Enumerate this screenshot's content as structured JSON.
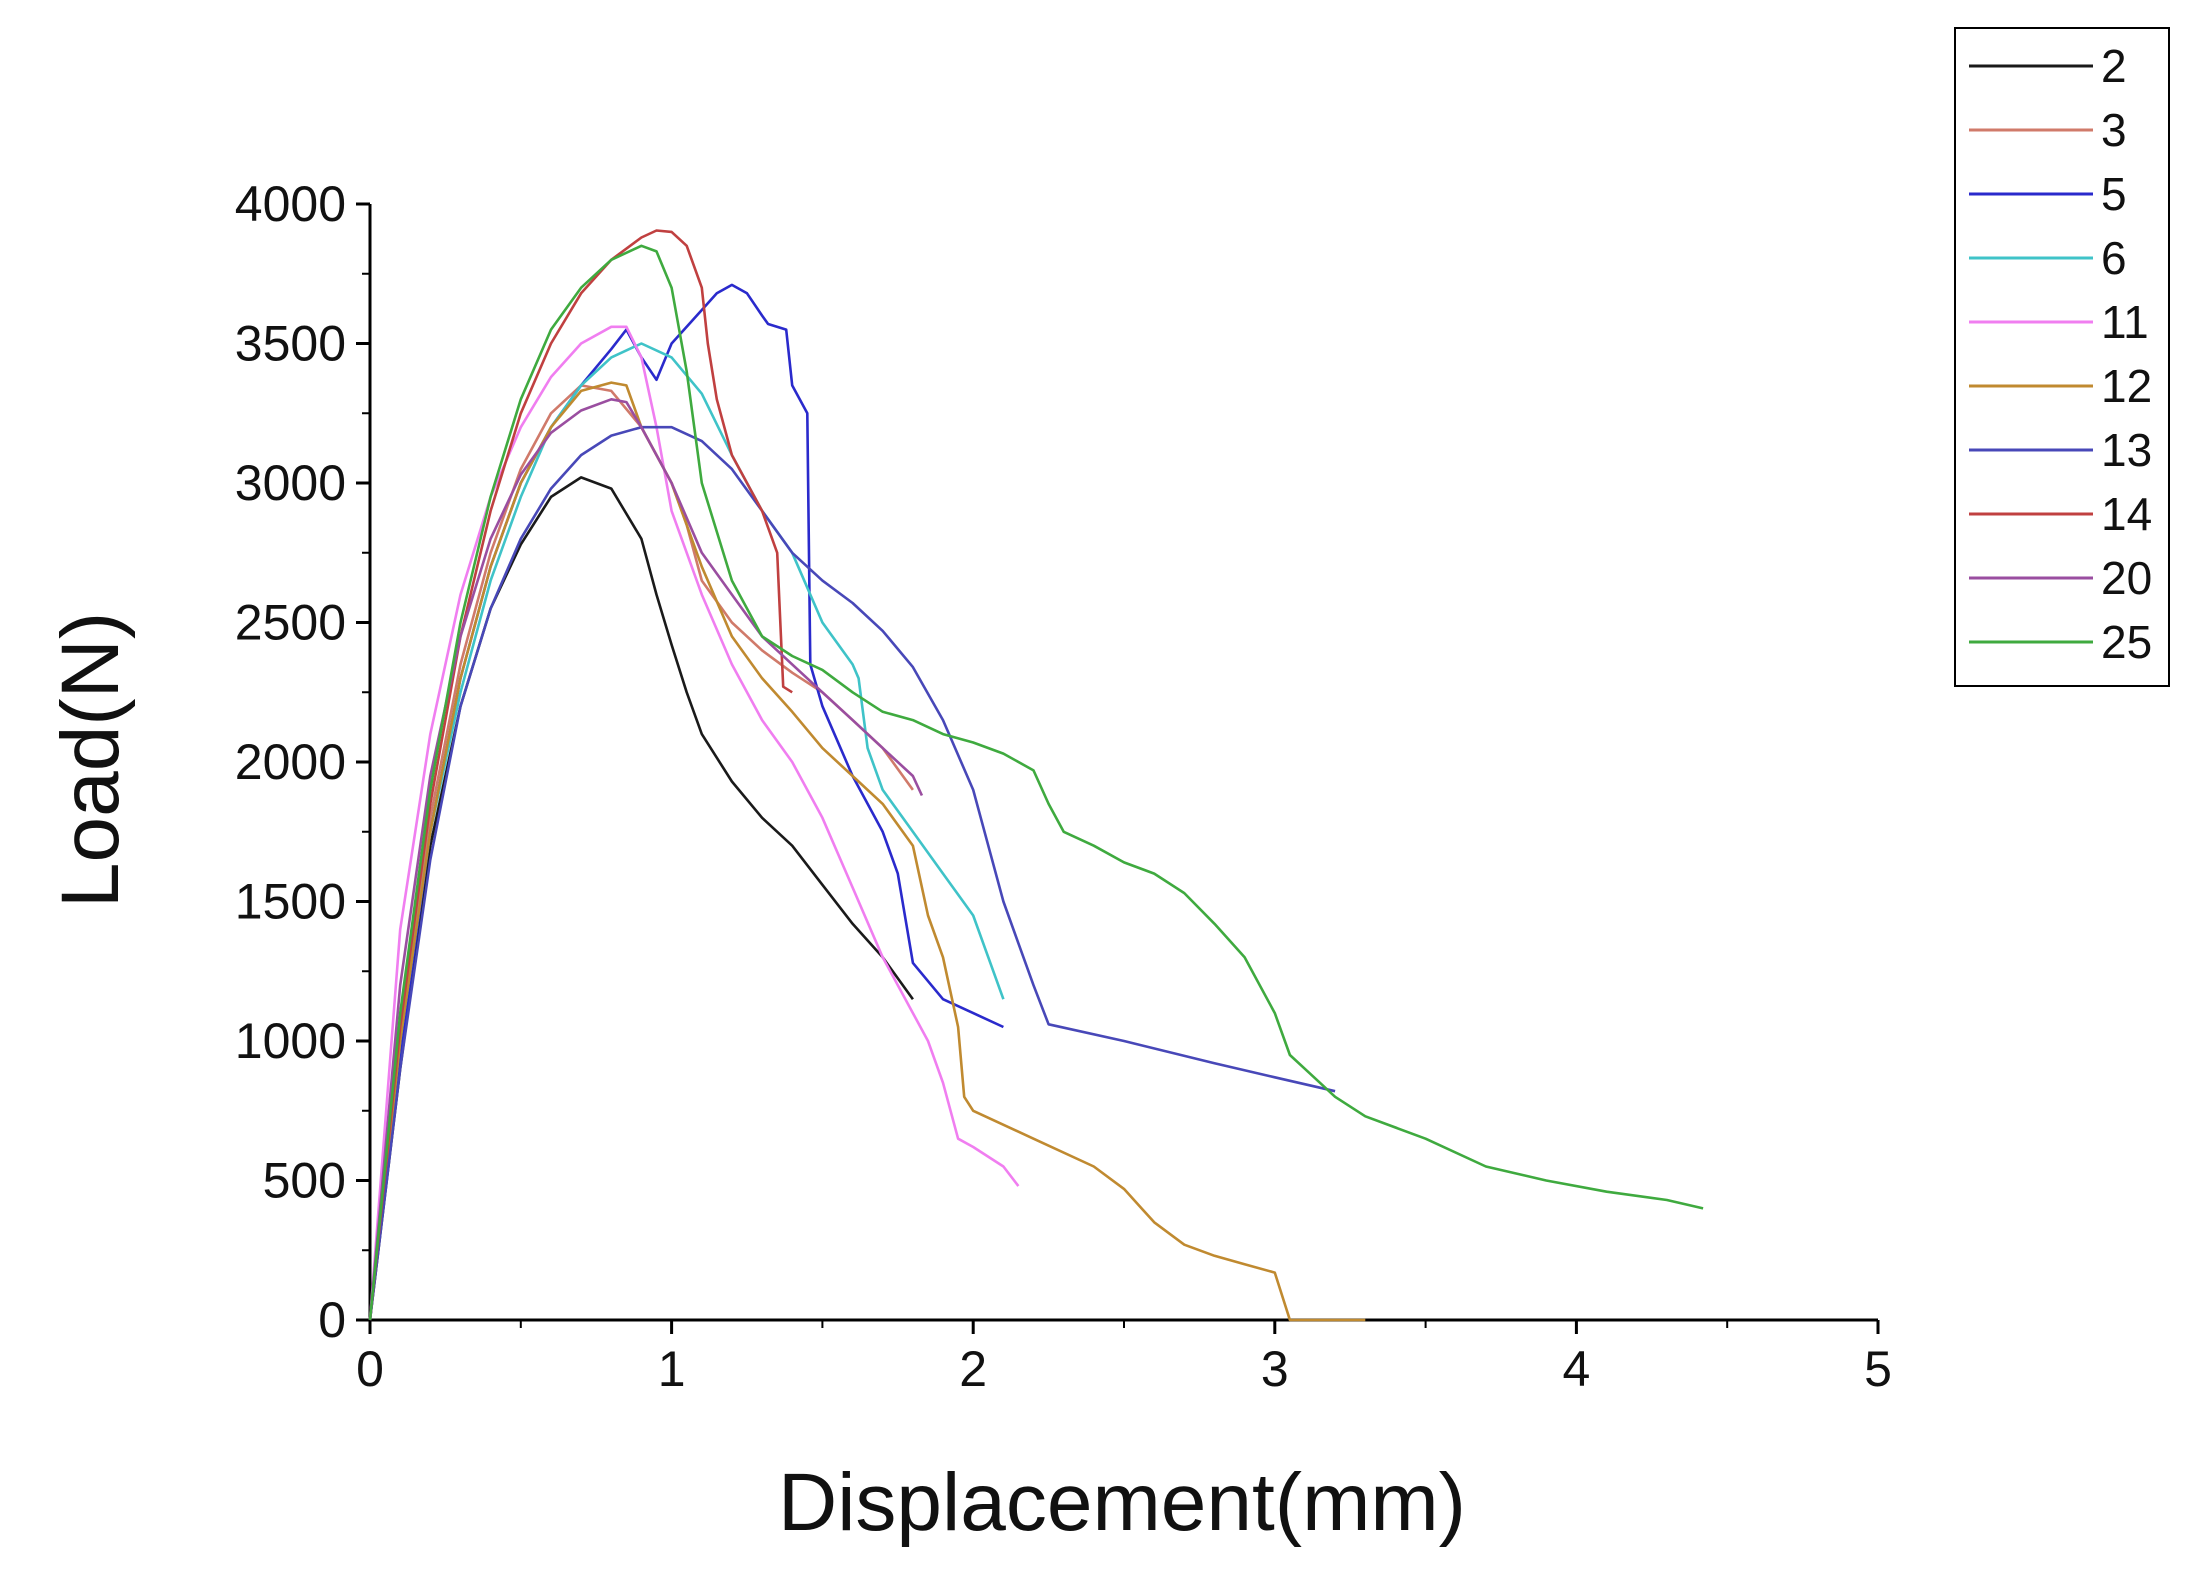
{
  "chart_data": {
    "type": "line",
    "xlabel": "Displacement(mm)",
    "ylabel": "Load(N)",
    "xlim": [
      0,
      5
    ],
    "ylim": [
      0,
      4000
    ],
    "x_ticks": [
      "0",
      "1",
      "2",
      "3",
      "4",
      "5"
    ],
    "y_ticks": [
      "0",
      "500",
      "1000",
      "1500",
      "2000",
      "2500",
      "3000",
      "3500",
      "4000"
    ],
    "grid": false,
    "legend_position": "top-right, outside plot area",
    "series": [
      {
        "name": "2",
        "color": "#1a1a1a",
        "points": [
          [
            0,
            0
          ],
          [
            0.1,
            900
          ],
          [
            0.2,
            1700
          ],
          [
            0.3,
            2200
          ],
          [
            0.4,
            2550
          ],
          [
            0.5,
            2780
          ],
          [
            0.6,
            2950
          ],
          [
            0.7,
            3020
          ],
          [
            0.8,
            2980
          ],
          [
            0.9,
            2800
          ],
          [
            0.95,
            2600
          ],
          [
            1.0,
            2420
          ],
          [
            1.05,
            2250
          ],
          [
            1.1,
            2100
          ],
          [
            1.2,
            1930
          ],
          [
            1.3,
            1800
          ],
          [
            1.4,
            1700
          ],
          [
            1.5,
            1560
          ],
          [
            1.6,
            1420
          ],
          [
            1.7,
            1300
          ],
          [
            1.8,
            1150
          ]
        ]
      },
      {
        "name": "3",
        "color": "#d07a6a",
        "points": [
          [
            0,
            0
          ],
          [
            0.1,
            1050
          ],
          [
            0.2,
            1800
          ],
          [
            0.3,
            2350
          ],
          [
            0.4,
            2750
          ],
          [
            0.5,
            3050
          ],
          [
            0.6,
            3250
          ],
          [
            0.7,
            3350
          ],
          [
            0.8,
            3330
          ],
          [
            0.9,
            3200
          ],
          [
            1.0,
            3000
          ],
          [
            1.05,
            2850
          ],
          [
            1.1,
            2650
          ],
          [
            1.2,
            2500
          ],
          [
            1.3,
            2400
          ],
          [
            1.4,
            2320
          ],
          [
            1.5,
            2250
          ],
          [
            1.6,
            2150
          ],
          [
            1.7,
            2050
          ],
          [
            1.8,
            1900
          ]
        ]
      },
      {
        "name": "5",
        "color": "#2a2acc",
        "points": [
          [
            0,
            0
          ],
          [
            0.1,
            950
          ],
          [
            0.2,
            1750
          ],
          [
            0.3,
            2300
          ],
          [
            0.4,
            2700
          ],
          [
            0.5,
            3000
          ],
          [
            0.6,
            3200
          ],
          [
            0.7,
            3350
          ],
          [
            0.8,
            3480
          ],
          [
            0.85,
            3550
          ],
          [
            0.9,
            3450
          ],
          [
            0.95,
            3370
          ],
          [
            1.0,
            3500
          ],
          [
            1.1,
            3620
          ],
          [
            1.15,
            3680
          ],
          [
            1.2,
            3710
          ],
          [
            1.25,
            3680
          ],
          [
            1.3,
            3600
          ],
          [
            1.32,
            3570
          ],
          [
            1.38,
            3550
          ],
          [
            1.4,
            3350
          ],
          [
            1.45,
            3250
          ],
          [
            1.46,
            2350
          ],
          [
            1.5,
            2200
          ],
          [
            1.6,
            1950
          ],
          [
            1.7,
            1750
          ],
          [
            1.75,
            1600
          ],
          [
            1.8,
            1280
          ],
          [
            1.9,
            1150
          ],
          [
            2.0,
            1100
          ],
          [
            2.1,
            1050
          ]
        ]
      },
      {
        "name": "6",
        "color": "#3fc3c8",
        "points": [
          [
            0,
            0
          ],
          [
            0.1,
            1000
          ],
          [
            0.2,
            1750
          ],
          [
            0.3,
            2250
          ],
          [
            0.4,
            2650
          ],
          [
            0.5,
            2950
          ],
          [
            0.6,
            3200
          ],
          [
            0.7,
            3350
          ],
          [
            0.8,
            3450
          ],
          [
            0.9,
            3500
          ],
          [
            1.0,
            3450
          ],
          [
            1.1,
            3320
          ],
          [
            1.2,
            3100
          ],
          [
            1.3,
            2900
          ],
          [
            1.4,
            2750
          ],
          [
            1.5,
            2500
          ],
          [
            1.6,
            2350
          ],
          [
            1.62,
            2300
          ],
          [
            1.65,
            2050
          ],
          [
            1.7,
            1900
          ],
          [
            1.8,
            1750
          ],
          [
            1.9,
            1600
          ],
          [
            2.0,
            1450
          ],
          [
            2.05,
            1300
          ],
          [
            2.1,
            1150
          ]
        ]
      },
      {
        "name": "11",
        "color": "#f07ef0",
        "points": [
          [
            0,
            0
          ],
          [
            0.1,
            1400
          ],
          [
            0.2,
            2100
          ],
          [
            0.3,
            2600
          ],
          [
            0.4,
            2950
          ],
          [
            0.5,
            3200
          ],
          [
            0.6,
            3380
          ],
          [
            0.7,
            3500
          ],
          [
            0.8,
            3560
          ],
          [
            0.85,
            3560
          ],
          [
            0.9,
            3450
          ],
          [
            0.95,
            3200
          ],
          [
            1.0,
            2900
          ],
          [
            1.1,
            2600
          ],
          [
            1.2,
            2350
          ],
          [
            1.3,
            2150
          ],
          [
            1.4,
            2000
          ],
          [
            1.5,
            1800
          ],
          [
            1.6,
            1550
          ],
          [
            1.7,
            1300
          ],
          [
            1.8,
            1100
          ],
          [
            1.85,
            1000
          ],
          [
            1.9,
            850
          ],
          [
            1.95,
            650
          ],
          [
            2.0,
            620
          ],
          [
            2.1,
            550
          ],
          [
            2.15,
            480
          ]
        ]
      },
      {
        "name": "12",
        "color": "#c08a30",
        "points": [
          [
            0,
            0
          ],
          [
            0.1,
            1000
          ],
          [
            0.2,
            1750
          ],
          [
            0.3,
            2300
          ],
          [
            0.4,
            2700
          ],
          [
            0.5,
            3000
          ],
          [
            0.6,
            3200
          ],
          [
            0.7,
            3330
          ],
          [
            0.8,
            3360
          ],
          [
            0.85,
            3350
          ],
          [
            0.9,
            3200
          ],
          [
            1.0,
            3000
          ],
          [
            1.1,
            2700
          ],
          [
            1.2,
            2450
          ],
          [
            1.3,
            2300
          ],
          [
            1.4,
            2180
          ],
          [
            1.5,
            2050
          ],
          [
            1.6,
            1950
          ],
          [
            1.7,
            1850
          ],
          [
            1.8,
            1700
          ],
          [
            1.85,
            1450
          ],
          [
            1.9,
            1300
          ],
          [
            1.95,
            1050
          ],
          [
            1.97,
            800
          ],
          [
            2.0,
            750
          ],
          [
            2.2,
            650
          ],
          [
            2.4,
            550
          ],
          [
            2.5,
            470
          ],
          [
            2.6,
            350
          ],
          [
            2.7,
            270
          ],
          [
            2.8,
            230
          ],
          [
            2.9,
            200
          ],
          [
            3.0,
            170
          ],
          [
            3.05,
            0
          ],
          [
            3.3,
            0
          ]
        ]
      },
      {
        "name": "13",
        "color": "#4848b8",
        "points": [
          [
            0,
            0
          ],
          [
            0.1,
            900
          ],
          [
            0.2,
            1650
          ],
          [
            0.3,
            2200
          ],
          [
            0.4,
            2550
          ],
          [
            0.5,
            2800
          ],
          [
            0.6,
            2980
          ],
          [
            0.7,
            3100
          ],
          [
            0.8,
            3170
          ],
          [
            0.9,
            3200
          ],
          [
            1.0,
            3200
          ],
          [
            1.1,
            3150
          ],
          [
            1.2,
            3050
          ],
          [
            1.3,
            2900
          ],
          [
            1.4,
            2750
          ],
          [
            1.5,
            2650
          ],
          [
            1.6,
            2570
          ],
          [
            1.7,
            2470
          ],
          [
            1.8,
            2340
          ],
          [
            1.9,
            2150
          ],
          [
            2.0,
            1900
          ],
          [
            2.05,
            1700
          ],
          [
            2.1,
            1500
          ],
          [
            2.15,
            1350
          ],
          [
            2.2,
            1200
          ],
          [
            2.25,
            1060
          ],
          [
            2.5,
            1000
          ],
          [
            2.8,
            920
          ],
          [
            3.0,
            870
          ],
          [
            3.2,
            820
          ]
        ]
      },
      {
        "name": "14",
        "color": "#c04040",
        "points": [
          [
            0,
            0
          ],
          [
            0.1,
            1050
          ],
          [
            0.2,
            1850
          ],
          [
            0.3,
            2450
          ],
          [
            0.4,
            2900
          ],
          [
            0.5,
            3250
          ],
          [
            0.6,
            3500
          ],
          [
            0.7,
            3680
          ],
          [
            0.8,
            3800
          ],
          [
            0.9,
            3880
          ],
          [
            0.95,
            3905
          ],
          [
            1.0,
            3900
          ],
          [
            1.05,
            3850
          ],
          [
            1.1,
            3700
          ],
          [
            1.12,
            3500
          ],
          [
            1.15,
            3300
          ],
          [
            1.2,
            3100
          ],
          [
            1.3,
            2900
          ],
          [
            1.35,
            2750
          ],
          [
            1.37,
            2270
          ],
          [
            1.4,
            2250
          ]
        ]
      },
      {
        "name": "20",
        "color": "#9a4ea0",
        "points": [
          [
            0,
            0
          ],
          [
            0.1,
            1200
          ],
          [
            0.2,
            1950
          ],
          [
            0.3,
            2450
          ],
          [
            0.4,
            2800
          ],
          [
            0.5,
            3030
          ],
          [
            0.6,
            3180
          ],
          [
            0.7,
            3260
          ],
          [
            0.8,
            3300
          ],
          [
            0.85,
            3290
          ],
          [
            0.9,
            3200
          ],
          [
            1.0,
            3000
          ],
          [
            1.1,
            2750
          ],
          [
            1.2,
            2600
          ],
          [
            1.3,
            2450
          ],
          [
            1.4,
            2350
          ],
          [
            1.5,
            2250
          ],
          [
            1.6,
            2150
          ],
          [
            1.7,
            2050
          ],
          [
            1.8,
            1950
          ],
          [
            1.83,
            1880
          ]
        ]
      },
      {
        "name": "25",
        "color": "#3faa3f",
        "points": [
          [
            0,
            0
          ],
          [
            0.1,
            1100
          ],
          [
            0.2,
            1900
          ],
          [
            0.3,
            2500
          ],
          [
            0.4,
            2950
          ],
          [
            0.5,
            3300
          ],
          [
            0.6,
            3550
          ],
          [
            0.7,
            3700
          ],
          [
            0.8,
            3800
          ],
          [
            0.9,
            3850
          ],
          [
            0.95,
            3830
          ],
          [
            1.0,
            3700
          ],
          [
            1.05,
            3400
          ],
          [
            1.1,
            3000
          ],
          [
            1.2,
            2650
          ],
          [
            1.3,
            2450
          ],
          [
            1.4,
            2380
          ],
          [
            1.5,
            2330
          ],
          [
            1.6,
            2250
          ],
          [
            1.7,
            2180
          ],
          [
            1.8,
            2150
          ],
          [
            1.9,
            2100
          ],
          [
            2.0,
            2070
          ],
          [
            2.1,
            2030
          ],
          [
            2.2,
            1970
          ],
          [
            2.25,
            1850
          ],
          [
            2.3,
            1750
          ],
          [
            2.4,
            1700
          ],
          [
            2.5,
            1640
          ],
          [
            2.6,
            1600
          ],
          [
            2.7,
            1530
          ],
          [
            2.8,
            1420
          ],
          [
            2.9,
            1300
          ],
          [
            3.0,
            1100
          ],
          [
            3.05,
            950
          ],
          [
            3.1,
            900
          ],
          [
            3.2,
            800
          ],
          [
            3.3,
            730
          ],
          [
            3.5,
            650
          ],
          [
            3.7,
            550
          ],
          [
            3.9,
            500
          ],
          [
            4.1,
            460
          ],
          [
            4.3,
            430
          ],
          [
            4.42,
            400
          ]
        ]
      }
    ]
  }
}
